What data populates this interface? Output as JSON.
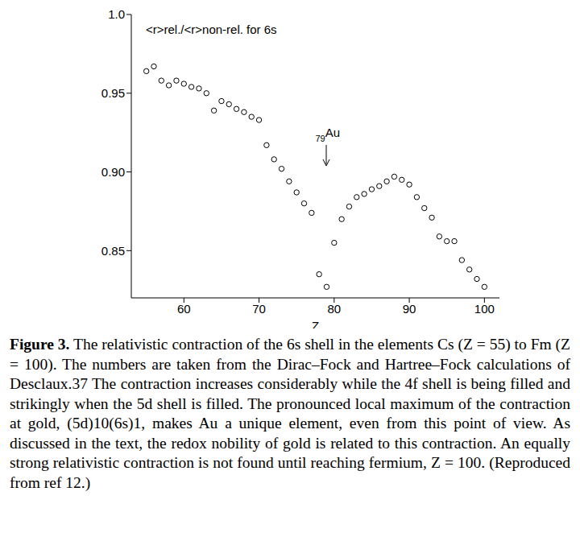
{
  "chart_data": {
    "type": "scatter",
    "title": "<r>rel./<r>non-rel. for 6s",
    "x_label": "Z",
    "x": [
      55,
      56,
      57,
      58,
      59,
      60,
      61,
      62,
      63,
      64,
      65,
      66,
      67,
      68,
      69,
      70,
      71,
      72,
      73,
      74,
      75,
      76,
      77,
      78,
      79,
      80,
      81,
      82,
      83,
      84,
      85,
      86,
      87,
      88,
      89,
      90,
      91,
      92,
      93,
      94,
      95,
      96,
      97,
      98,
      99,
      100
    ],
    "values": [
      0.964,
      0.967,
      0.958,
      0.955,
      0.958,
      0.956,
      0.954,
      0.953,
      0.95,
      0.939,
      0.945,
      0.943,
      0.94,
      0.938,
      0.935,
      0.933,
      0.917,
      0.908,
      0.902,
      0.894,
      0.887,
      0.88,
      0.874,
      0.835,
      0.827,
      0.855,
      0.87,
      0.878,
      0.884,
      0.886,
      0.889,
      0.891,
      0.894,
      0.897,
      0.895,
      0.892,
      0.884,
      0.877,
      0.871,
      0.859,
      0.856,
      0.856,
      0.844,
      0.838,
      0.832,
      0.827
    ],
    "color": "#000000",
    "marker": "open_circle",
    "xlim": [
      53,
      102
    ],
    "xticks": [
      60,
      70,
      80,
      90,
      100
    ],
    "ylim": [
      0.82,
      1.0
    ],
    "yticks": [
      0.85,
      {
        "value": 0.9,
        "label": "0.90"
      },
      0.95,
      {
        "value": 1,
        "label": "1.0"
      }
    ],
    "grid": false,
    "annotation": {
      "x": 79,
      "number": "79",
      "label": "Au"
    },
    "caption": {
      "label": "Figure 3.",
      "text": "The relativistic contraction of the 6s shell in the elements Cs (Z = 55) to Fm (Z = 100). The numbers are taken from the Dirac–Fock and Hartree–Fock calculations of Desclaux.37 The contraction increases considerably while the 4f shell is being filled and strikingly when the 5d shell is filled. The pronounced local maximum of the contraction at gold, (5d)10(6s)1, makes Au a unique element, even from this point of view. As discussed in the text, the redox nobility of gold is related to this contraction. An equally strong relativistic contraction is not found until reaching fermium, Z = 100. (Reproduced from ref 12.)"
    }
  }
}
